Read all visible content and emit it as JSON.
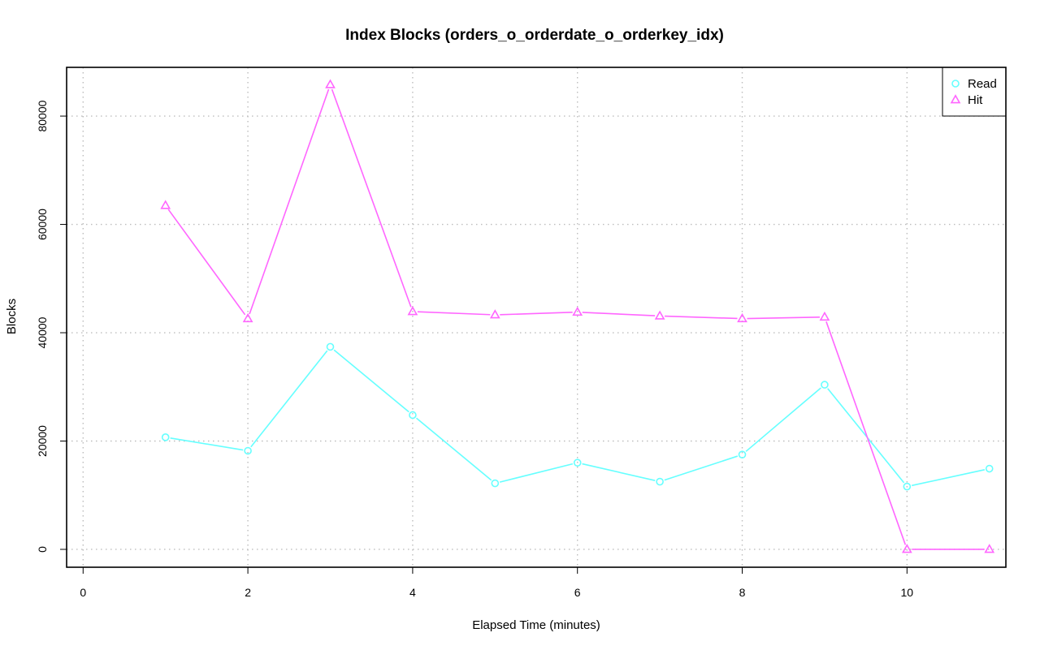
{
  "chart_data": {
    "type": "line",
    "title": "Index Blocks (orders_o_orderdate_o_orderkey_idx)",
    "xlabel": "Elapsed Time (minutes)",
    "ylabel": "Blocks",
    "xlim": [
      -0.2,
      11.2
    ],
    "ylim": [
      -3300,
      89000
    ],
    "x_ticks": [
      0,
      2,
      4,
      6,
      8,
      10
    ],
    "y_ticks": [
      0,
      20000,
      40000,
      60000,
      80000
    ],
    "grid": true,
    "legend_position": "top-right",
    "x": [
      1,
      2,
      3,
      4,
      5,
      6,
      7,
      8,
      9,
      10,
      11
    ],
    "series": [
      {
        "name": "Read",
        "color": "#66ffff",
        "marker": "circle",
        "values": [
          20700,
          18200,
          37400,
          24800,
          12200,
          16000,
          12500,
          17500,
          30400,
          11600,
          14900
        ]
      },
      {
        "name": "Hit",
        "color": "#ff66ff",
        "marker": "triangle",
        "values": [
          63500,
          42600,
          85800,
          43900,
          43300,
          43800,
          43100,
          42600,
          42900,
          0,
          0
        ]
      }
    ]
  }
}
